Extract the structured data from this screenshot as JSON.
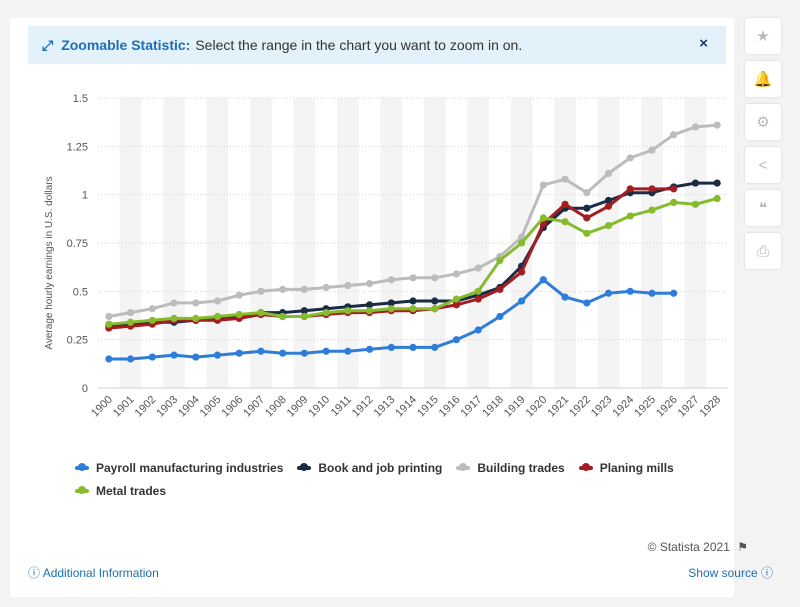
{
  "banner": {
    "bold_label": "Zoomable Statistic:",
    "message": "Select the range in the chart you want to zoom in on.",
    "close_symbol": "×"
  },
  "sidebar": {
    "buttons": [
      {
        "name": "favorite",
        "symbol": "★"
      },
      {
        "name": "notification",
        "symbol": "🔔"
      },
      {
        "name": "settings",
        "symbol": "⚙"
      },
      {
        "name": "share",
        "symbol": "<"
      },
      {
        "name": "cite",
        "symbol": "❝"
      },
      {
        "name": "print",
        "symbol": "⎙"
      }
    ]
  },
  "footer": {
    "credit": "© Statista 2021",
    "additional_info": "Additional Information",
    "show_source": "Show source"
  },
  "chart_data": {
    "type": "line",
    "title": "",
    "xlabel": "",
    "ylabel": "Average hourly earnings in U.S. dollars",
    "ylim": [
      0,
      1.5
    ],
    "yticks": [
      0,
      0.25,
      0.5,
      0.75,
      1,
      1.25,
      1.5
    ],
    "ytick_labels": [
      "0",
      "0.25",
      "0.5",
      "0.75",
      "1",
      "1.25",
      "1.5"
    ],
    "categories": [
      "1900",
      "1901",
      "1902",
      "1903",
      "1904",
      "1905",
      "1906",
      "1907",
      "1908",
      "1909",
      "1910",
      "1911",
      "1912",
      "1913",
      "1914",
      "1915",
      "1916",
      "1917",
      "1918",
      "1919",
      "1920",
      "1921",
      "1922",
      "1923",
      "1924",
      "1925",
      "1926",
      "1927",
      "1928"
    ],
    "grid": true,
    "legend_position": "bottom",
    "series": [
      {
        "name": "Payroll manufacturing industries",
        "color": "#2e7ed9",
        "values": [
          0.15,
          0.15,
          0.16,
          0.17,
          0.16,
          0.17,
          0.18,
          0.19,
          0.18,
          0.18,
          0.19,
          0.19,
          0.2,
          0.21,
          0.21,
          0.21,
          0.25,
          0.3,
          0.37,
          0.45,
          0.56,
          0.47,
          0.44,
          0.49,
          0.5,
          0.49,
          0.49,
          null,
          null
        ]
      },
      {
        "name": "Book and job printing",
        "color": "#1a2c43",
        "values": [
          0.32,
          0.33,
          0.34,
          0.34,
          0.35,
          0.36,
          0.37,
          0.39,
          0.39,
          0.4,
          0.41,
          0.42,
          0.43,
          0.44,
          0.45,
          0.45,
          0.45,
          0.48,
          0.52,
          0.63,
          0.83,
          0.93,
          0.93,
          0.97,
          1.01,
          1.01,
          1.04,
          1.06,
          1.06
        ]
      },
      {
        "name": "Building trades",
        "color": "#bcbcbc",
        "values": [
          0.37,
          0.39,
          0.41,
          0.44,
          0.44,
          0.45,
          0.48,
          0.5,
          0.51,
          0.51,
          0.52,
          0.53,
          0.54,
          0.56,
          0.57,
          0.57,
          0.59,
          0.62,
          0.68,
          0.78,
          1.05,
          1.08,
          1.01,
          1.11,
          1.19,
          1.23,
          1.31,
          1.35,
          1.36
        ]
      },
      {
        "name": "Planing mills",
        "color": "#a31d21",
        "values": [
          0.31,
          0.32,
          0.33,
          0.35,
          0.35,
          0.35,
          0.36,
          0.38,
          0.37,
          0.37,
          0.38,
          0.39,
          0.39,
          0.4,
          0.4,
          0.41,
          0.43,
          0.46,
          0.51,
          0.6,
          0.85,
          0.95,
          0.88,
          0.94,
          1.03,
          1.03,
          1.03,
          null,
          null
        ]
      },
      {
        "name": "Metal trades",
        "color": "#86bb2d",
        "values": [
          0.33,
          0.34,
          0.35,
          0.36,
          0.36,
          0.37,
          0.38,
          0.39,
          0.37,
          0.37,
          0.39,
          0.4,
          0.4,
          0.41,
          0.41,
          0.41,
          0.46,
          0.5,
          0.66,
          0.75,
          0.88,
          0.86,
          0.8,
          0.84,
          0.89,
          0.92,
          0.96,
          0.95,
          0.98
        ]
      }
    ]
  }
}
